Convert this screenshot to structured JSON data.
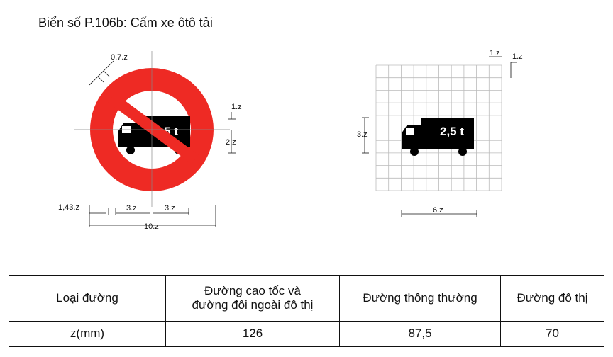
{
  "title": "Biển số P.106b: Cấm xe ôtô tải",
  "sign": {
    "truck_label": "2,5 t",
    "colors": {
      "ring": "#ee2a24",
      "truck": "#000000",
      "background": "#ffffff"
    },
    "dimensions": {
      "ring_width": "0,7.z",
      "offset": "1,43.z",
      "half_truck_left": "3.z",
      "half_truck_right": "3.z",
      "diameter": "10.z",
      "top_gap": "1.z",
      "truck_half_height": "2.z"
    }
  },
  "grid": {
    "truck_label": "2,5 t",
    "dimensions": {
      "cell_w": "1.z",
      "cell_h": "1.z",
      "truck_height": "3.z",
      "truck_width": "6.z"
    }
  },
  "table": {
    "header": [
      "Loại đường",
      "Đường cao tốc và\nđường đôi ngoài đô thị",
      "Đường thông thường",
      "Đường đô thị"
    ],
    "row": [
      "z(mm)",
      "126",
      "87,5",
      "70"
    ]
  }
}
